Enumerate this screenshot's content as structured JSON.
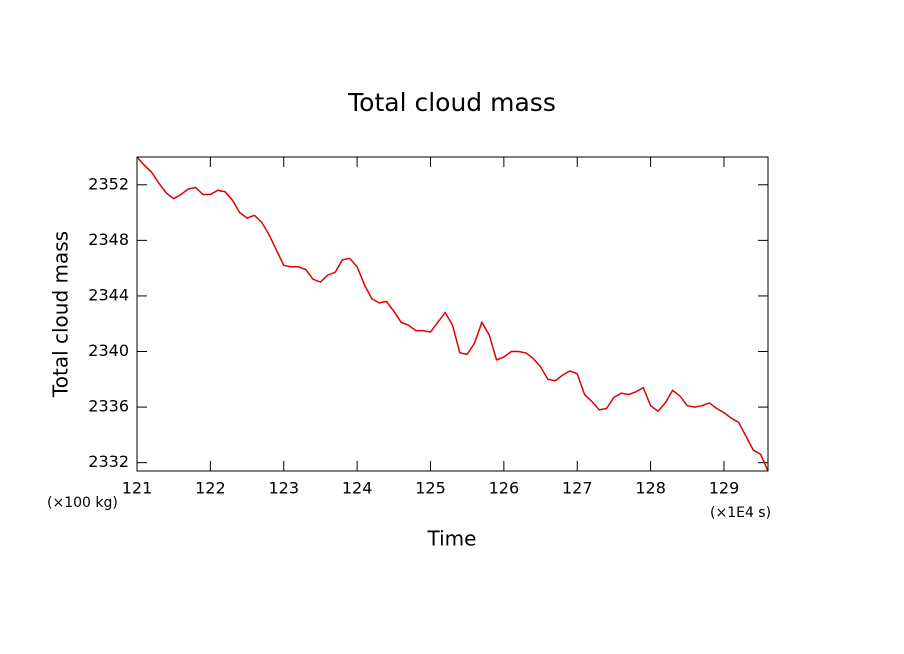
{
  "chart_data": {
    "type": "line",
    "title": "Total cloud mass",
    "x_label": "Time",
    "y_label": "Total cloud mass",
    "x_unit": "(×1E4 s)",
    "y_unit": "(×100 kg)",
    "color": "#e00000",
    "x": [
      121.0,
      121.1,
      121.2,
      121.3,
      121.4,
      121.5,
      121.6,
      121.7,
      121.8,
      121.9,
      122.0,
      122.1,
      122.2,
      122.3,
      122.4,
      122.5,
      122.6,
      122.7,
      122.8,
      122.9,
      123.0,
      123.1,
      123.2,
      123.3,
      123.4,
      123.5,
      123.6,
      123.7,
      123.8,
      123.9,
      124.0,
      124.1,
      124.2,
      124.3,
      124.4,
      124.5,
      124.6,
      124.7,
      124.8,
      124.9,
      125.0,
      125.1,
      125.2,
      125.3,
      125.4,
      125.5,
      125.6,
      125.7,
      125.8,
      125.9,
      126.0,
      126.1,
      126.2,
      126.3,
      126.4,
      126.5,
      126.6,
      126.7,
      126.8,
      126.9,
      127.0,
      127.1,
      127.2,
      127.3,
      127.4,
      127.5,
      127.6,
      127.7,
      127.8,
      127.9,
      128.0,
      128.1,
      128.2,
      128.3,
      128.4,
      128.5,
      128.6,
      128.7,
      128.8,
      128.9,
      129.0,
      129.1,
      129.2,
      129.3,
      129.4,
      129.5,
      129.6
    ],
    "values": [
      2354.0,
      2353.4,
      2352.9,
      2352.1,
      2351.4,
      2351.0,
      2351.3,
      2351.7,
      2351.8,
      2351.3,
      2351.3,
      2351.6,
      2351.5,
      2350.9,
      2350.0,
      2349.6,
      2349.8,
      2349.3,
      2348.4,
      2347.3,
      2346.2,
      2346.1,
      2346.1,
      2345.9,
      2345.2,
      2345.0,
      2345.5,
      2345.7,
      2346.6,
      2346.7,
      2346.1,
      2344.8,
      2343.8,
      2343.5,
      2343.6,
      2342.9,
      2342.1,
      2341.9,
      2341.5,
      2341.5,
      2341.4,
      2342.1,
      2342.8,
      2341.9,
      2339.9,
      2339.8,
      2340.6,
      2342.1,
      2341.2,
      2339.4,
      2339.6,
      2340.0,
      2340.0,
      2339.9,
      2339.5,
      2338.9,
      2338.0,
      2337.9,
      2338.3,
      2338.6,
      2338.4,
      2336.9,
      2336.4,
      2335.8,
      2335.9,
      2336.7,
      2337.0,
      2336.9,
      2337.1,
      2337.4,
      2336.1,
      2335.7,
      2336.3,
      2337.2,
      2336.8,
      2336.1,
      2336.0,
      2336.1,
      2336.3,
      2335.9,
      2335.6,
      2335.2,
      2334.9,
      2333.9,
      2332.9,
      2332.6,
      2331.4
    ],
    "xlim": [
      121,
      129.6
    ],
    "ylim": [
      2331.4,
      2354
    ],
    "xticks": [
      121,
      122,
      123,
      124,
      125,
      126,
      127,
      128,
      129
    ],
    "yticks": [
      2332,
      2336,
      2340,
      2344,
      2348,
      2352
    ]
  }
}
